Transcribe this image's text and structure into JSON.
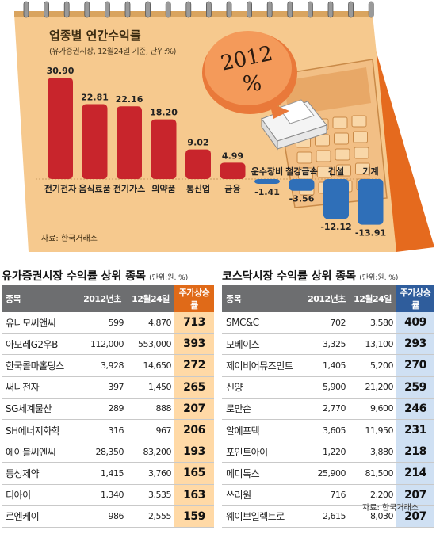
{
  "chart": {
    "title": "업종별 연간수익률",
    "subtitle": "(유가증권시장, 12월24일 기준, 단위:%)",
    "source": "자료: 한국거래소",
    "year_badge": "2012",
    "percent_badge": "%",
    "colors": {
      "positive": "#c8252c",
      "negative": "#2f6fb8",
      "calendar": "#f6c98e",
      "calendar_back": "#e56a1e"
    }
  },
  "chart_data": {
    "type": "bar",
    "title": "업종별 연간수익률",
    "subtitle": "(유가증권시장, 12월24일 기준, 단위:%)",
    "categories": [
      "전기전자",
      "음식료품",
      "전기가스",
      "의약품",
      "통신업",
      "금융",
      "운수장비",
      "철강금속",
      "건설",
      "기계"
    ],
    "values": [
      30.9,
      22.81,
      22.16,
      18.2,
      9.02,
      4.99,
      -1.41,
      -3.56,
      -12.12,
      -13.91
    ],
    "value_labels": [
      "30.90",
      "22.81",
      "22.16",
      "18.20",
      "9.02",
      "4.99",
      "-1.41",
      "-3.56",
      "-12.12",
      "-13.91"
    ],
    "ylim": [
      -13.91,
      30.9
    ],
    "grid": false,
    "legend": "none"
  },
  "kospi_table": {
    "title": "유가증권시장 수익률 상위 종목",
    "unit": "(단위:원, %)",
    "headers": [
      "종목",
      "2012년초",
      "12월24일",
      "주가상승률"
    ],
    "rows": [
      [
        "유니모씨앤씨",
        "599",
        "4,870",
        "713"
      ],
      [
        "아모레G2우B",
        "112,000",
        "553,000",
        "393"
      ],
      [
        "한국콜마홀딩스",
        "3,928",
        "14,650",
        "272"
      ],
      [
        "써니전자",
        "397",
        "1,450",
        "265"
      ],
      [
        "SG세계물산",
        "289",
        "888",
        "207"
      ],
      [
        "SH에너지화학",
        "316",
        "967",
        "206"
      ],
      [
        "에이블씨엔씨",
        "28,350",
        "83,200",
        "193"
      ],
      [
        "동성제약",
        "1,415",
        "3,760",
        "165"
      ],
      [
        "디아이",
        "1,340",
        "3,535",
        "163"
      ],
      [
        "로엔케이",
        "986",
        "2,555",
        "159"
      ]
    ]
  },
  "kosdaq_table": {
    "title": "코스닥시장 수익률 상위 종목",
    "unit": "(단위:원, %)",
    "headers": [
      "종목",
      "2012년초",
      "12월24일",
      "주가상승률"
    ],
    "rows": [
      [
        "SMC&C",
        "702",
        "3,580",
        "409"
      ],
      [
        "모베이스",
        "3,325",
        "13,100",
        "293"
      ],
      [
        "제이비어뮤즈먼트",
        "1,405",
        "5,200",
        "270"
      ],
      [
        "신양",
        "5,900",
        "21,200",
        "259"
      ],
      [
        "로만손",
        "2,770",
        "9,600",
        "246"
      ],
      [
        "알에프텍",
        "3,605",
        "11,950",
        "231"
      ],
      [
        "포인트아이",
        "1,220",
        "3,880",
        "218"
      ],
      [
        "메디톡스",
        "25,900",
        "81,500",
        "214"
      ],
      [
        "쓰리원",
        "716",
        "2,200",
        "207"
      ],
      [
        "웨이브일렉트로",
        "2,615",
        "8,030",
        "207"
      ]
    ],
    "source": "자료: 한국거래소"
  }
}
